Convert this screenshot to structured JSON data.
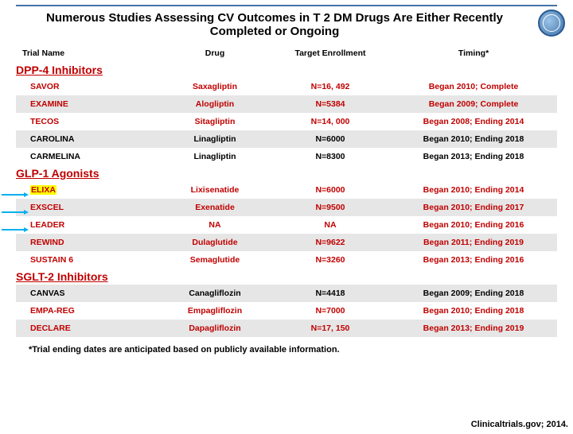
{
  "title": "Numerous Studies Assessing CV Outcomes in T 2 DM Drugs Are Either Recently Completed or Ongoing",
  "headers": {
    "c1": "Trial Name",
    "c2": "Drug",
    "c3": "Target Enrollment",
    "c4": "Timing*"
  },
  "categories": [
    {
      "name": "DPP-4 Inhibitors",
      "rows": [
        {
          "name": "SAVOR",
          "drug": "Saxagliptin",
          "enroll": "N=16, 492",
          "timing": "Began 2010; Complete",
          "red": true,
          "hl": false,
          "arrow": false,
          "alt": false
        },
        {
          "name": "EXAMINE",
          "drug": "Alogliptin",
          "enroll": "N=5384",
          "timing": "Began 2009; Complete",
          "red": true,
          "hl": false,
          "arrow": false,
          "alt": true
        },
        {
          "name": "TECOS",
          "drug": "Sitagliptin",
          "enroll": "N=14, 000",
          "timing": "Began 2008; Ending 2014",
          "red": true,
          "hl": false,
          "arrow": false,
          "alt": false
        },
        {
          "name": "CAROLINA",
          "drug": "Linagliptin",
          "enroll": "N=6000",
          "timing": "Began 2010; Ending 2018",
          "red": false,
          "hl": false,
          "arrow": false,
          "alt": true
        },
        {
          "name": "CARMELINA",
          "drug": "Linagliptin",
          "enroll": "N=8300",
          "timing": "Began 2013; Ending 2018",
          "red": false,
          "hl": false,
          "arrow": false,
          "alt": false
        }
      ]
    },
    {
      "name": "GLP-1 Agonists",
      "rows": [
        {
          "name": "ELIXA",
          "drug": "Lixisenatide",
          "enroll": "N=6000",
          "timing": "Began 2010; Ending 2014",
          "red": true,
          "hl": true,
          "arrow": true,
          "alt": false
        },
        {
          "name": "EXSCEL",
          "drug": "Exenatide",
          "enroll": "N=9500",
          "timing": "Began 2010; Ending 2017",
          "red": true,
          "hl": false,
          "arrow": true,
          "alt": true
        },
        {
          "name": "LEADER",
          "drug": "NA",
          "enroll": "NA",
          "timing": "Began 2010; Ending 2016",
          "red": true,
          "hl": false,
          "arrow": true,
          "alt": false
        },
        {
          "name": "REWIND",
          "drug": "Dulaglutide",
          "enroll": "N=9622",
          "timing": "Began 2011; Ending 2019",
          "red": true,
          "hl": false,
          "arrow": false,
          "alt": true
        },
        {
          "name": "SUSTAIN 6",
          "drug": "Semaglutide",
          "enroll": "N=3260",
          "timing": "Began 2013; Ending 2016",
          "red": true,
          "hl": false,
          "arrow": false,
          "alt": false
        }
      ]
    },
    {
      "name": "SGLT-2 Inhibitors",
      "rows": [
        {
          "name": "CANVAS",
          "drug": "Canagliflozin",
          "enroll": "N=4418",
          "timing": "Began 2009; Ending 2018",
          "red": false,
          "hl": false,
          "arrow": false,
          "alt": true
        },
        {
          "name": "EMPA-REG",
          "drug": "Empagliflozin",
          "enroll": "N=7000",
          "timing": "Began 2010; Ending 2018",
          "red": true,
          "hl": false,
          "arrow": false,
          "alt": false
        },
        {
          "name": "DECLARE",
          "drug": "Dapagliflozin",
          "enroll": "N=17, 150",
          "timing": "Began 2013; Ending 2019",
          "red": true,
          "hl": false,
          "arrow": false,
          "alt": true
        }
      ]
    }
  ],
  "footnote": "*Trial ending dates are anticipated based on publicly available information.",
  "reference": "Clinicaltrials.gov;  2014.",
  "colors": {
    "red": "#c00000",
    "hl": "#ffff00",
    "arrow": "#00b0f0",
    "alt": "#e6e6e6"
  }
}
